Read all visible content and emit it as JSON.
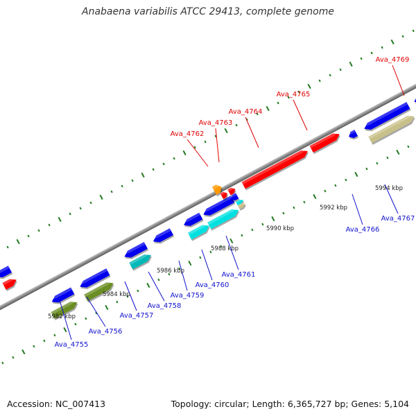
{
  "header": {
    "title": "Anabaena variabilis ATCC 29413, complete genome"
  },
  "footer": {
    "accession": "Accession: NC_007413",
    "info": "Topology: circular; Length: 6,365,727 bp; Genes: 5,104"
  },
  "colors": {
    "backbone": "#8a8a8a",
    "tick_green": "#1e7a1e",
    "forward_label": "#dd0000",
    "reverse_label": "#1010cc",
    "leader_forward": "#dd0000",
    "leader_reverse": "#1010cc",
    "gene_red": "#ff0000",
    "gene_orange": "#ff9900",
    "gene_blue": "#0000ee",
    "gene_cyan": "#00e0e0",
    "gene_teal": "#00b8b8",
    "gene_olive": "#6b8e23",
    "gene_khaki": "#c8c08a"
  },
  "scale_labels": [
    "5982 kbp",
    "5984 kbp",
    "5986 kbp",
    "5988 kbp",
    "5990 kbp",
    "5992 kbp",
    "5994 kbp"
  ],
  "forward_gene_labels": [
    "Ava_4762",
    "Ava_4763",
    "Ava_4764",
    "Ava_4765",
    "Ava_4769"
  ],
  "reverse_gene_labels": [
    "Ava_4755",
    "Ava_4756",
    "Ava_4757",
    "Ava_4758",
    "Ava_4759",
    "Ava_4760",
    "Ava_4761",
    "Ava_4766",
    "Ava_4767"
  ]
}
